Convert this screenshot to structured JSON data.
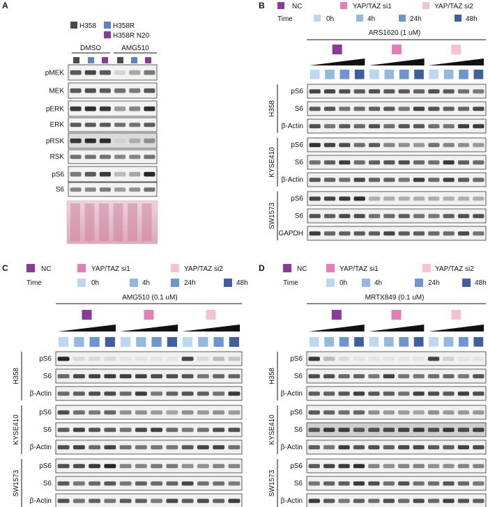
{
  "colors": {
    "H358": "#4a4a4a",
    "H358R": "#5a86c4",
    "H358R_N20": "#8b3a9c",
    "NC": "#8b3a9c",
    "si1": "#e57db8",
    "si2": "#f4c4cc",
    "t0": "#bcd8ee",
    "t4": "#93b9e0",
    "t24": "#6d95cf",
    "t48": "#3f5f9f",
    "ponceau": "#e4b9c9"
  },
  "panelA": {
    "label": "A",
    "legend": [
      "H358",
      "H358R",
      "H358R N20"
    ],
    "groups": [
      "DMSO",
      "AMG510"
    ],
    "rows": [
      "pMEK",
      "MEK",
      "pERK",
      "ERK",
      "pRSK",
      "RSK",
      "pS6",
      "S6"
    ]
  },
  "legend_texts": {
    "nc": "NC",
    "si1": "YAP/TAZ si1",
    "si2": "YAP/TAZ si2",
    "time": "Time",
    "t0": "0h",
    "t4": "4h",
    "t24": "24h",
    "t48": "48h"
  },
  "panelB": {
    "label": "B",
    "treatment": "ARS1620 (1 uM)",
    "cells": [
      {
        "name": "H358",
        "rows": [
          "pS6",
          "S6",
          "β-Actin"
        ]
      },
      {
        "name": "KYSE410",
        "rows": [
          "pS6",
          "S6",
          "β-Actin"
        ]
      },
      {
        "name": "SW1573",
        "rows": [
          "pS6",
          "S6",
          "GAPDH"
        ]
      }
    ]
  },
  "panelC": {
    "label": "C",
    "treatment": "AMG510 (0.1 uM)",
    "cells": [
      {
        "name": "H358",
        "rows": [
          "pS6",
          "S6",
          "β-Actin"
        ]
      },
      {
        "name": "KYSE410",
        "rows": [
          "pS6",
          "S6",
          "β-Actin"
        ]
      },
      {
        "name": "SW1573",
        "rows": [
          "pS6",
          "S6",
          "β-Actin"
        ]
      }
    ]
  },
  "panelD": {
    "label": "D",
    "treatment": "MRTX849 (0.1 uM)",
    "cells": [
      {
        "name": "H358",
        "rows": [
          "pS6",
          "S6",
          "β-Actin"
        ]
      },
      {
        "name": "KYSE410",
        "rows": [
          "pS6",
          "S6",
          "β-Actin"
        ]
      },
      {
        "name": "SW1573",
        "rows": [
          "pS6",
          "S6",
          "β-Actin"
        ]
      }
    ]
  }
}
